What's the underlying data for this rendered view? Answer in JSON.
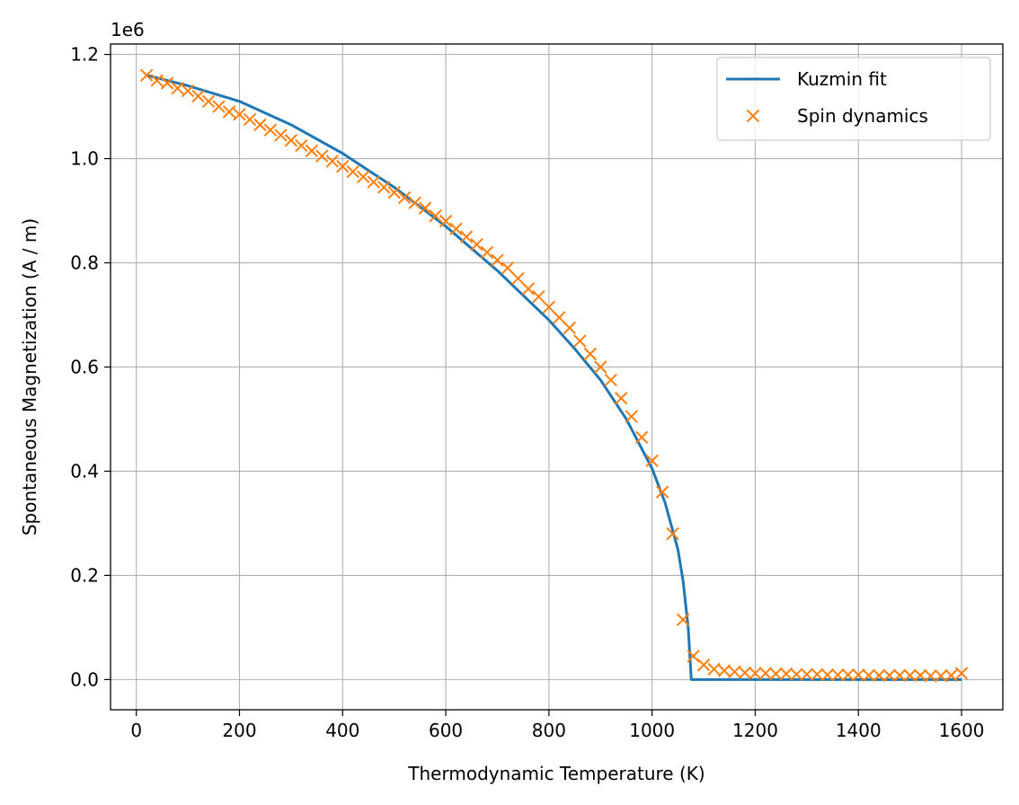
{
  "chart_data": {
    "type": "line",
    "xlabel": "Thermodynamic Temperature (K)",
    "ylabel": "Spontaneous Magnetization (A / m)",
    "y_offset_text": "1e6",
    "xlim": [
      -50,
      1680
    ],
    "ylim": [
      -0.058,
      1.22
    ],
    "y_scale": 1000000,
    "xticks": [
      0,
      200,
      400,
      600,
      800,
      1000,
      1200,
      1400,
      1600
    ],
    "xtick_labels": [
      "0",
      "200",
      "400",
      "600",
      "800",
      "1000",
      "1200",
      "1400",
      "1600"
    ],
    "yticks": [
      0.0,
      0.2,
      0.4,
      0.6,
      0.8,
      1.0,
      1.2
    ],
    "ytick_labels": [
      "0.0",
      "0.2",
      "0.4",
      "0.6",
      "0.8",
      "1.0",
      "1.2"
    ],
    "grid": true,
    "legend_position": "top-right",
    "series": [
      {
        "name": "Kuzmin fit",
        "style": "line",
        "color": "#1f77b4",
        "x": [
          20,
          100,
          200,
          300,
          400,
          500,
          600,
          700,
          800,
          850,
          900,
          950,
          1000,
          1025,
          1050,
          1060,
          1070,
          1076,
          1100,
          1200,
          1300,
          1400,
          1500,
          1600
        ],
        "y": [
          1.16,
          1.14,
          1.11,
          1.065,
          1.01,
          0.945,
          0.87,
          0.785,
          0.69,
          0.635,
          0.575,
          0.5,
          0.405,
          0.34,
          0.25,
          0.19,
          0.1,
          0.0,
          0.0,
          0.0,
          0.0,
          0.0,
          0.0,
          0.0
        ]
      },
      {
        "name": "Spin dynamics",
        "style": "marker-x",
        "color": "#ff7f0e",
        "x": [
          20,
          40,
          60,
          80,
          100,
          120,
          140,
          160,
          180,
          200,
          220,
          240,
          260,
          280,
          300,
          320,
          340,
          360,
          380,
          400,
          420,
          440,
          460,
          480,
          500,
          520,
          540,
          560,
          580,
          600,
          620,
          640,
          660,
          680,
          700,
          720,
          740,
          760,
          780,
          800,
          820,
          840,
          860,
          880,
          900,
          920,
          940,
          960,
          980,
          1000,
          1020,
          1040,
          1060,
          1080,
          1100,
          1120,
          1140,
          1160,
          1180,
          1200,
          1220,
          1240,
          1260,
          1280,
          1300,
          1320,
          1340,
          1360,
          1380,
          1400,
          1420,
          1440,
          1460,
          1480,
          1500,
          1520,
          1540,
          1560,
          1580,
          1600
        ],
        "y": [
          1.16,
          1.15,
          1.145,
          1.135,
          1.13,
          1.12,
          1.11,
          1.1,
          1.09,
          1.085,
          1.075,
          1.065,
          1.055,
          1.045,
          1.035,
          1.025,
          1.015,
          1.005,
          0.995,
          0.985,
          0.975,
          0.965,
          0.955,
          0.945,
          0.935,
          0.925,
          0.915,
          0.905,
          0.89,
          0.88,
          0.865,
          0.85,
          0.835,
          0.82,
          0.805,
          0.79,
          0.77,
          0.75,
          0.735,
          0.715,
          0.695,
          0.675,
          0.65,
          0.625,
          0.6,
          0.575,
          0.54,
          0.505,
          0.465,
          0.42,
          0.36,
          0.28,
          0.115,
          0.045,
          0.028,
          0.02,
          0.017,
          0.015,
          0.013,
          0.012,
          0.012,
          0.011,
          0.011,
          0.01,
          0.01,
          0.01,
          0.009,
          0.009,
          0.009,
          0.009,
          0.008,
          0.008,
          0.008,
          0.008,
          0.008,
          0.008,
          0.007,
          0.007,
          0.008,
          0.012
        ]
      }
    ]
  }
}
